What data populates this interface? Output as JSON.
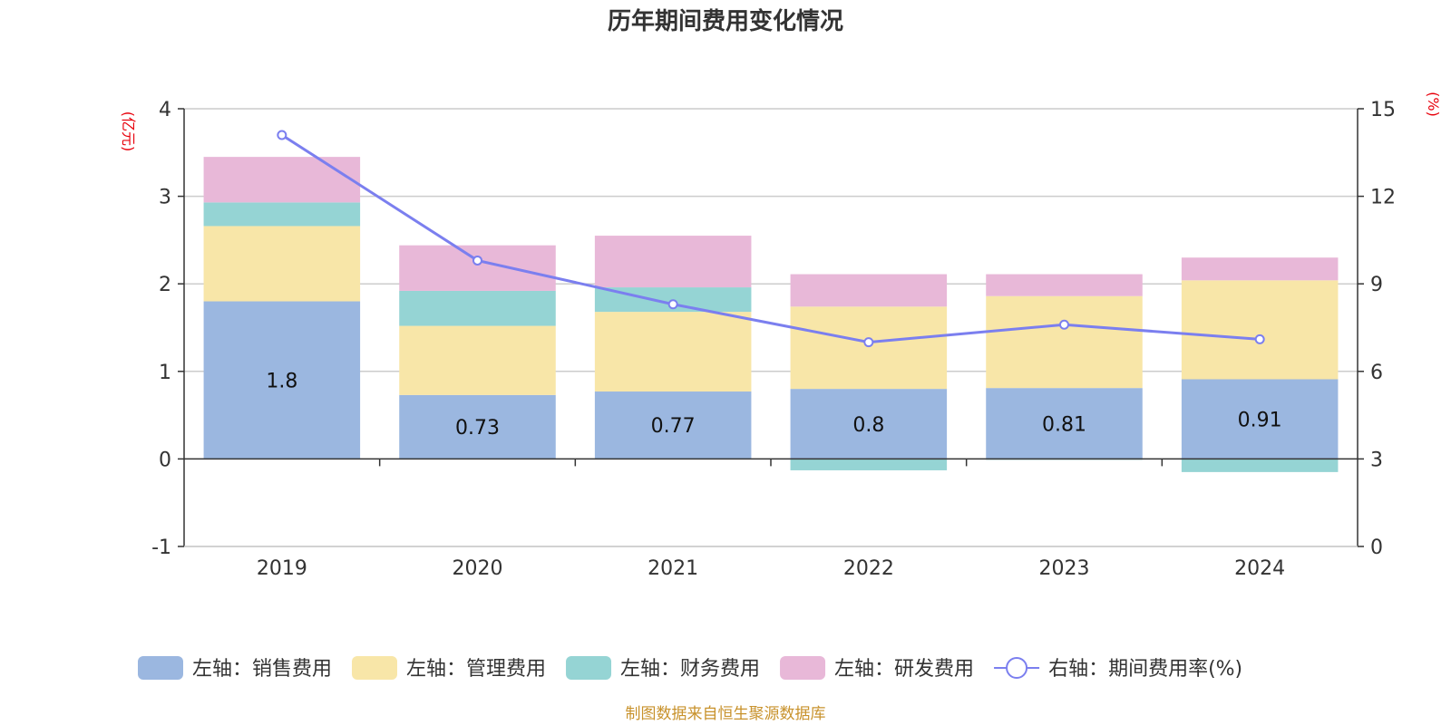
{
  "chart_data": {
    "type": "bar",
    "stacked": true,
    "title": "历年期间费用变化情况",
    "categories": [
      "2019",
      "2020",
      "2021",
      "2022",
      "2023",
      "2024"
    ],
    "left_axis": {
      "unit": "(亿元)",
      "ylim": [
        -1,
        4
      ],
      "ticks": [
        "-1",
        "0",
        "1",
        "2",
        "3",
        "4"
      ]
    },
    "right_axis": {
      "unit": "(%)",
      "ylim": [
        0,
        15
      ],
      "ticks": [
        "0",
        "3",
        "6",
        "9",
        "12",
        "15"
      ]
    },
    "series": [
      {
        "name": "左轴：销售费用",
        "axis": "left",
        "color": "#9bb7e0",
        "values": [
          1.8,
          0.73,
          0.77,
          0.8,
          0.81,
          0.91
        ],
        "labels": [
          "1.8",
          "0.73",
          "0.77",
          "0.8",
          "0.81",
          "0.91"
        ]
      },
      {
        "name": "左轴：管理费用",
        "axis": "left",
        "color": "#f8e6a8",
        "values": [
          0.86,
          0.79,
          0.91,
          0.94,
          1.05,
          1.13
        ]
      },
      {
        "name": "左轴：财务费用",
        "axis": "left",
        "color": "#95d4d4",
        "values": [
          0.27,
          0.4,
          0.28,
          -0.13,
          -0.01,
          -0.15
        ]
      },
      {
        "name": "左轴：研发费用",
        "axis": "left",
        "color": "#e8b8d8",
        "values": [
          0.52,
          0.52,
          0.59,
          0.37,
          0.25,
          0.26
        ]
      },
      {
        "name": "右轴：期间费用率(%)",
        "type": "line",
        "axis": "right",
        "color": "#7b7fef",
        "values": [
          14.1,
          9.8,
          8.3,
          7.0,
          7.6,
          7.1
        ]
      }
    ],
    "grid": true,
    "legend_position": "bottom"
  },
  "footer": {
    "source": "制图数据来自恒生聚源数据库"
  }
}
